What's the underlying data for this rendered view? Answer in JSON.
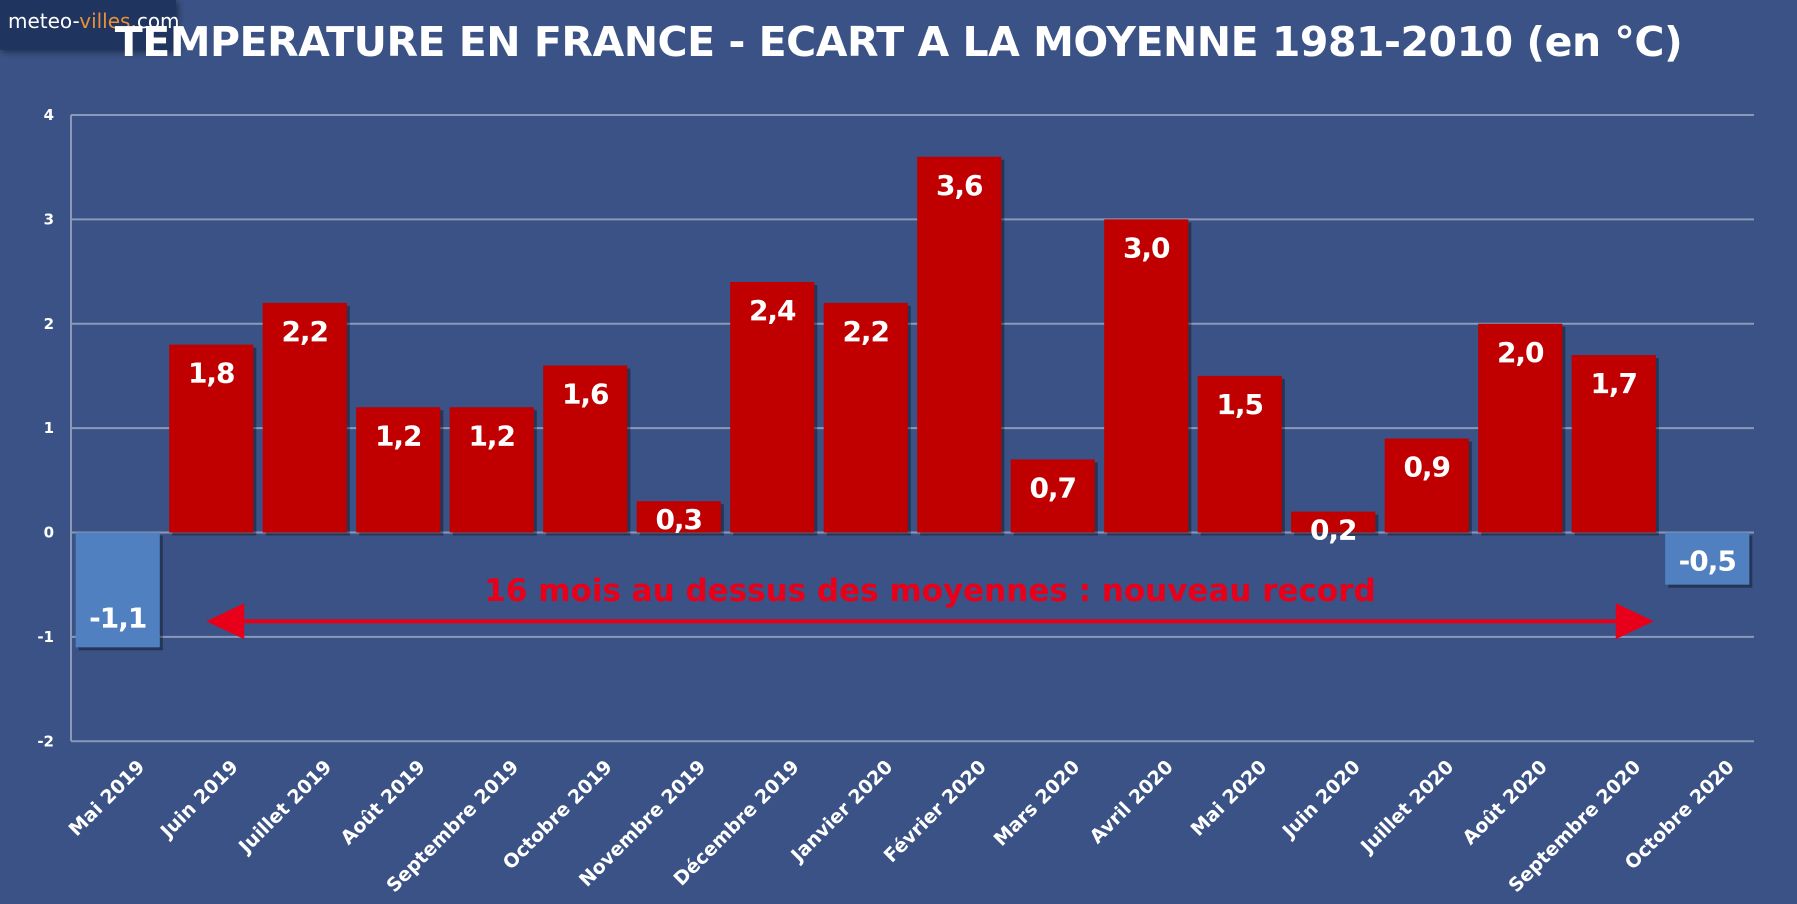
{
  "logo": {
    "part1": "meteo-",
    "part2": "villes",
    "part3": ".com"
  },
  "colors": {
    "background": "#3a5285",
    "positive": "#c00000",
    "negative": "#5080c0",
    "annotation": "#e8001a",
    "grid": "#8a99b8"
  },
  "chart_data": {
    "type": "bar",
    "title": "TEMPERATURE EN FRANCE - ECART A LA MOYENNE 1981-2010 (en °C)",
    "xlabel": "",
    "ylabel": "",
    "ylim": [
      -2,
      4
    ],
    "yticks": [
      -2,
      -1,
      0,
      1,
      2,
      3,
      4
    ],
    "ytick_labels": [
      "-2",
      "-1",
      "0",
      "1",
      "2",
      "3",
      "4"
    ],
    "grid": true,
    "legend": "none",
    "categories": [
      "Mai 2019",
      "Juin 2019",
      "Juillet 2019",
      "Août 2019",
      "Septembre 2019",
      "Octobre 2019",
      "Novembre 2019",
      "Décembre 2019",
      "Janvier 2020",
      "Février 2020",
      "Mars 2020",
      "Avril 2020",
      "Mai 2020",
      "Juin 2020",
      "Juillet 2020",
      "Août 2020",
      "Septembre 2020",
      "Octobre 2020"
    ],
    "values": [
      -1.1,
      1.8,
      2.2,
      1.2,
      1.2,
      1.6,
      0.3,
      2.4,
      2.2,
      3.6,
      0.7,
      3.0,
      1.5,
      0.2,
      0.9,
      2.0,
      1.7,
      -0.5
    ],
    "value_labels": [
      "-1,1",
      "1,8",
      "2,2",
      "1,2",
      "1,2",
      "1,6",
      "0,3",
      "2,4",
      "2,2",
      "3,6",
      "0,7",
      "3,0",
      "1,5",
      "0,2",
      "0,9",
      "2,0",
      "1,7",
      "-0,5"
    ],
    "annotation": {
      "text": "16 mois au dessus des moyennes : nouveau record",
      "arrow_from": "Juin 2019",
      "arrow_to": "Septembre 2020",
      "y": -0.85
    }
  }
}
